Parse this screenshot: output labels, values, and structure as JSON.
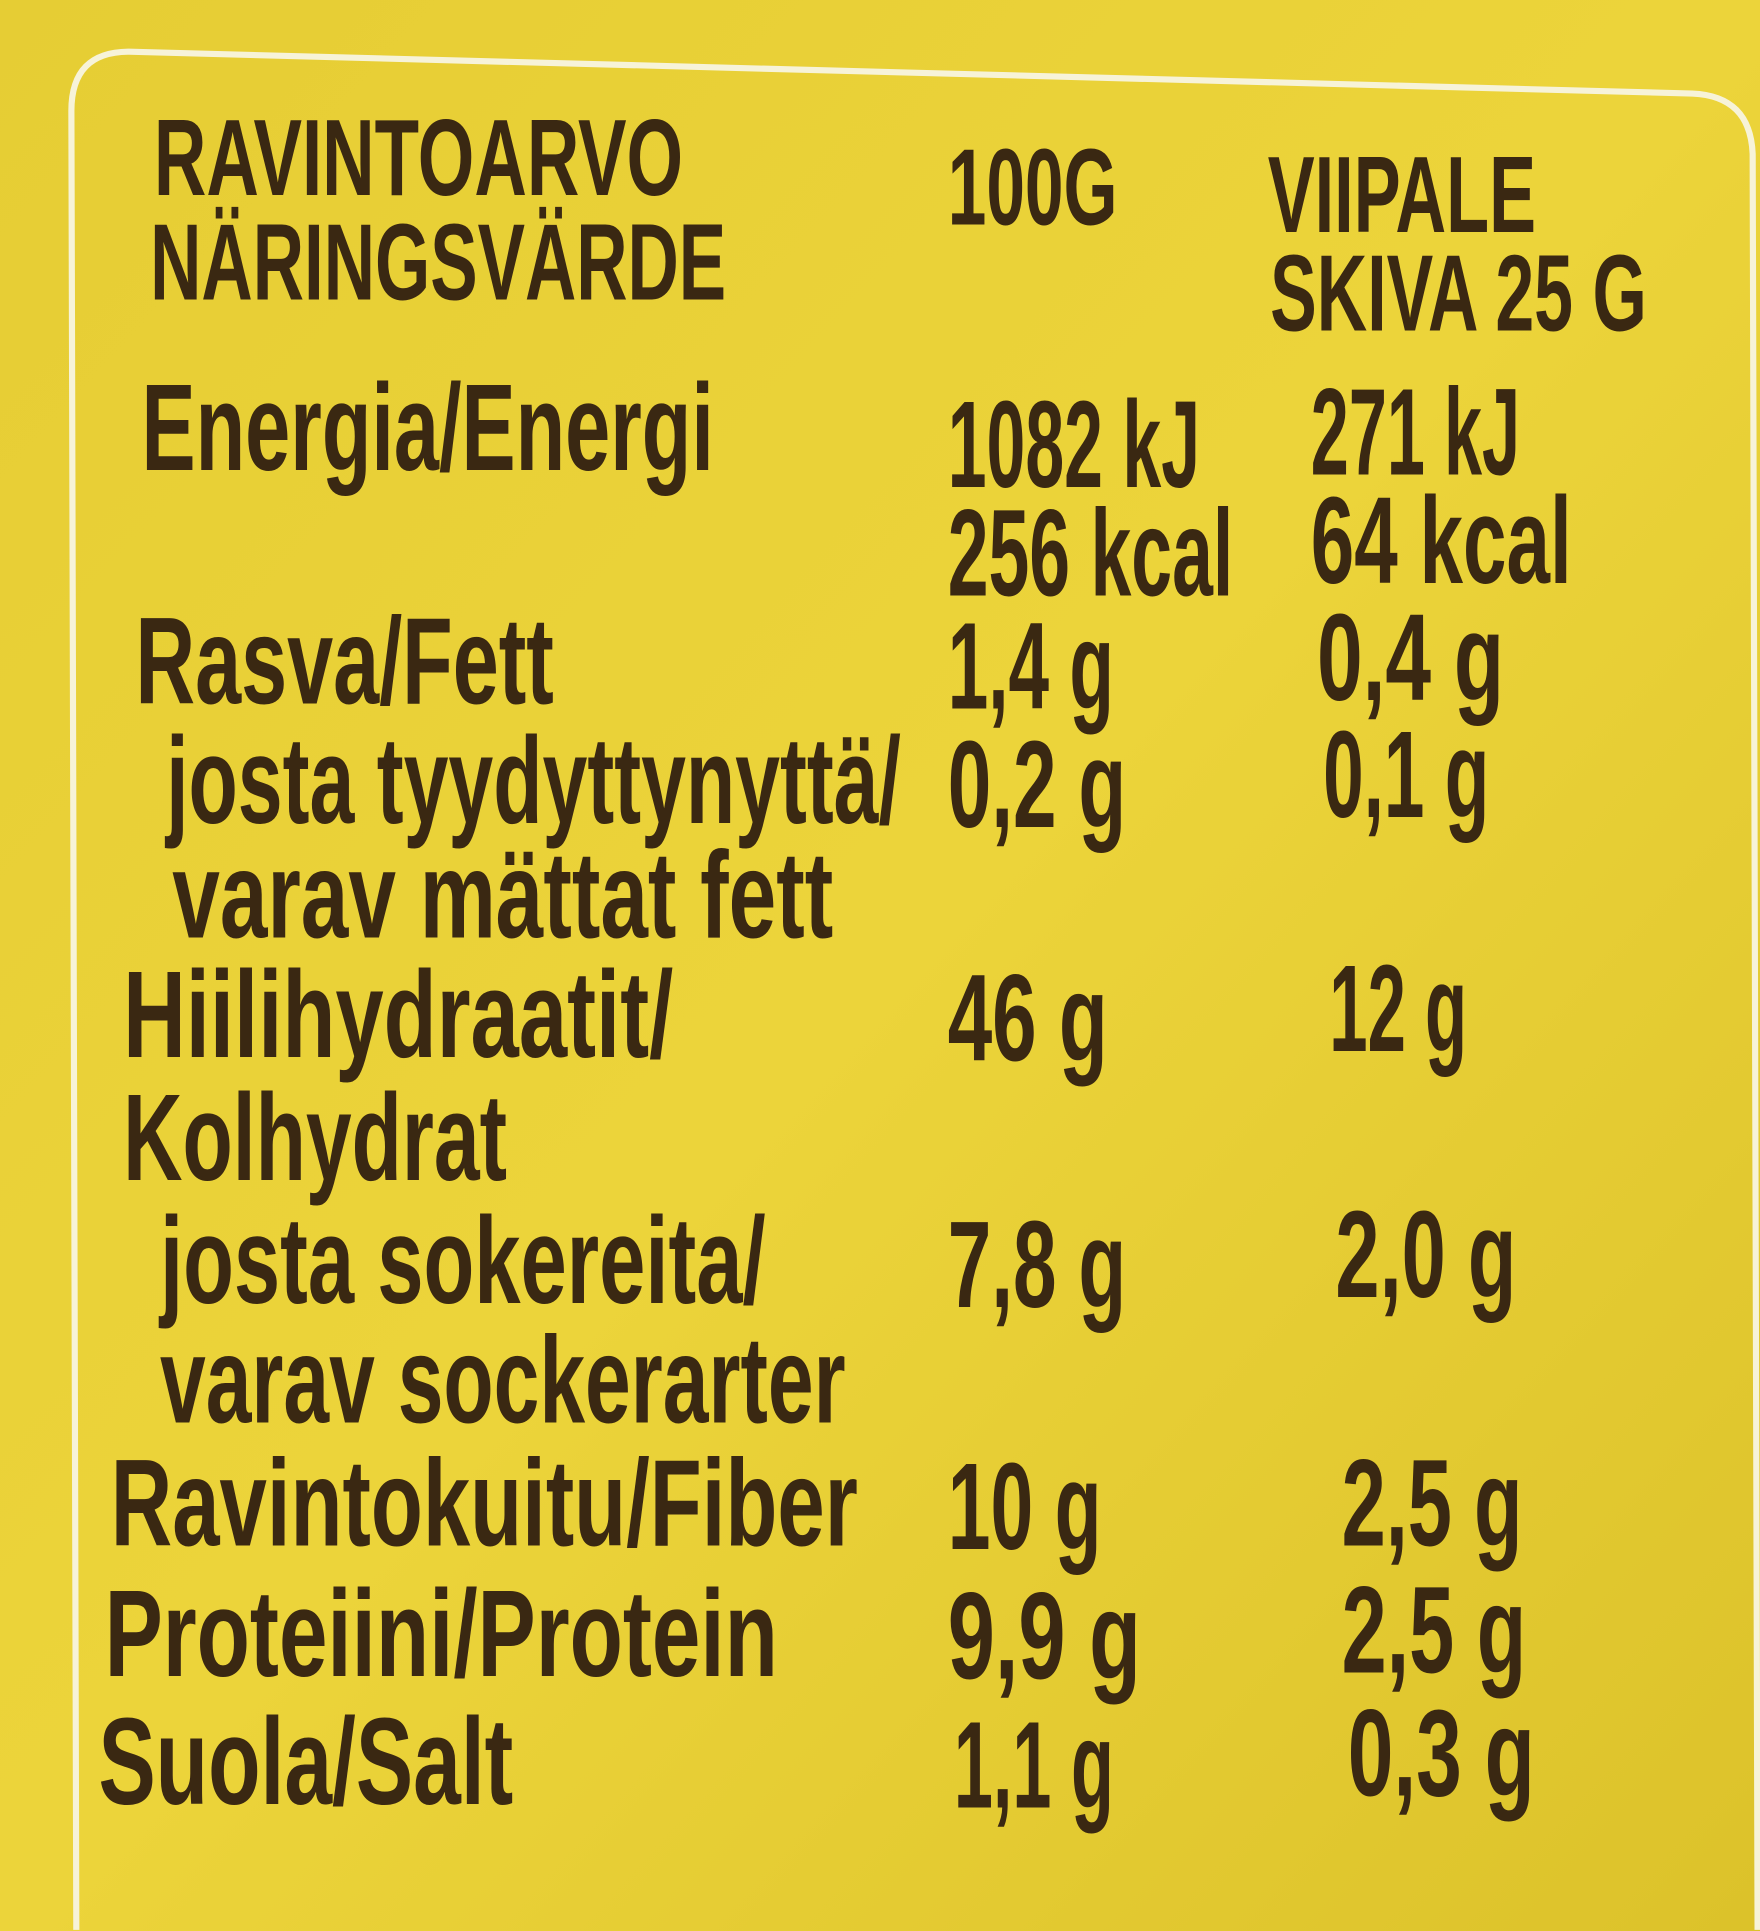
{
  "header": {
    "title": [
      "RAVINTOARVO",
      "NÄRINGSVÄRDE"
    ],
    "per_100g": "100G",
    "per_serving": [
      "VIIPALE",
      "SKIVA 25 G"
    ]
  },
  "rows": [
    {
      "label": [
        "Energia/Energi"
      ],
      "per_100g": [
        "1082 kJ",
        "256 kcal"
      ],
      "per_serving": [
        "271 kJ",
        "64 kcal"
      ]
    },
    {
      "label": [
        "Rasva/Fett"
      ],
      "per_100g": [
        "1,4 g"
      ],
      "per_serving": [
        "0,4 g"
      ]
    },
    {
      "label": [
        "josta tyydyttynyttä/",
        "varav mättat fett"
      ],
      "per_100g": [
        "0,2 g"
      ],
      "per_serving": [
        "0,1 g"
      ]
    },
    {
      "label": [
        "Hiilihydraatit/",
        "Kolhydrat"
      ],
      "per_100g": [
        "46 g"
      ],
      "per_serving": [
        "12 g"
      ]
    },
    {
      "label": [
        "josta sokereita/",
        "varav sockerarter"
      ],
      "per_100g": [
        "7,8 g"
      ],
      "per_serving": [
        "2,0 g"
      ]
    },
    {
      "label": [
        "Ravintokuitu/Fiber"
      ],
      "per_100g": [
        "10 g"
      ],
      "per_serving": [
        "2,5 g"
      ]
    },
    {
      "label": [
        "Proteiini/Protein"
      ],
      "per_100g": [
        "9,9 g"
      ],
      "per_serving": [
        "2,5 g"
      ]
    },
    {
      "label": [
        "Suola/Salt"
      ],
      "per_100g": [
        "1,1 g"
      ],
      "per_serving": [
        "0,3 g"
      ]
    }
  ]
}
